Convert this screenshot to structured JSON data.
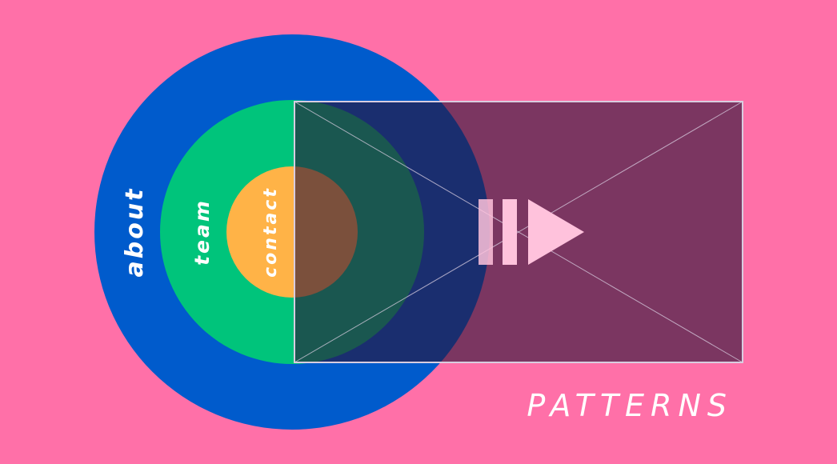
{
  "rings": [
    {
      "label": "about",
      "color": "#005bcc"
    },
    {
      "label": "team",
      "color": "#00c47b"
    },
    {
      "label": "contact",
      "color": "#ffb347"
    }
  ],
  "video_frame": {
    "fill": "#2a1436",
    "play_icon_color": "#ffc2dc",
    "stroke": "#d8cde0"
  },
  "footer": {
    "title": "PATTERNS"
  },
  "colors": {
    "background": "#ff70a8"
  }
}
